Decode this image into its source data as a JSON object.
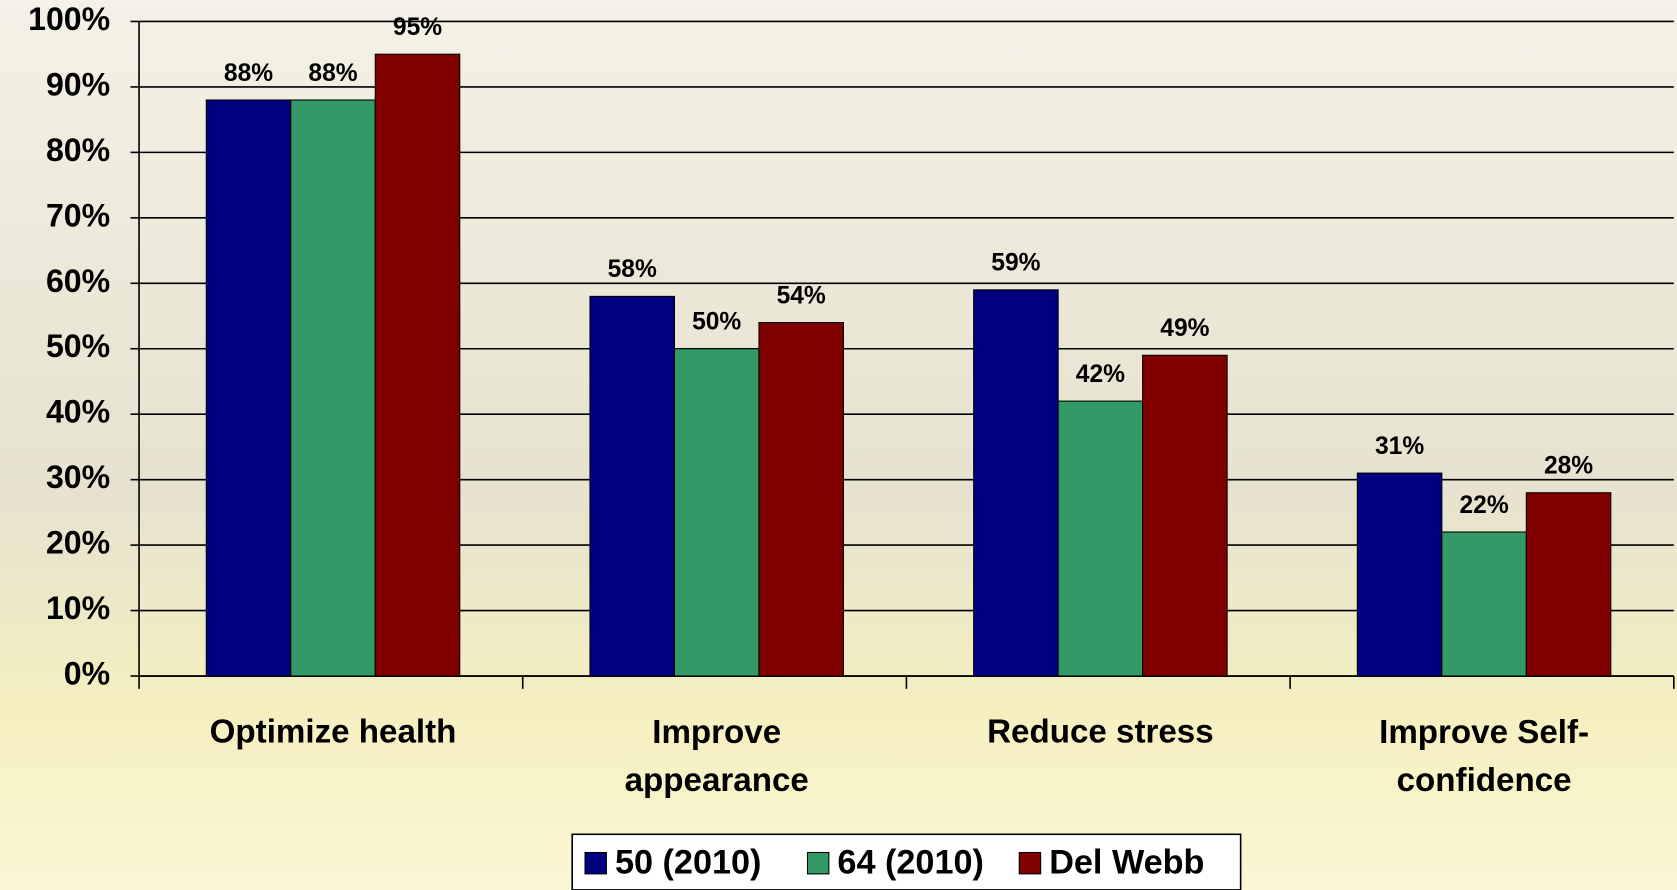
{
  "chart_data": {
    "type": "bar",
    "categories": [
      "Optimize health",
      "Improve\nappearance",
      "Reduce stress",
      "Improve Self-\nconfidence"
    ],
    "series": [
      {
        "name": "50 (2010)",
        "color": "#000080",
        "values": [
          88,
          58,
          59,
          31
        ],
        "value_labels": [
          "88%",
          "58%",
          "59%",
          "31%"
        ]
      },
      {
        "name": "64 (2010)",
        "color": "#339966",
        "values": [
          88,
          50,
          42,
          22
        ],
        "value_labels": [
          "88%",
          "50%",
          "42%",
          "22%"
        ]
      },
      {
        "name": "Del Webb",
        "color": "#800000",
        "values": [
          95,
          54,
          49,
          28
        ],
        "value_labels": [
          "95%",
          "54%",
          "49%",
          "28%"
        ]
      }
    ],
    "ylim": [
      0,
      100
    ],
    "yticks": [
      {
        "value": 0,
        "label": "0%"
      },
      {
        "value": 10,
        "label": "10%"
      },
      {
        "value": 20,
        "label": "20%"
      },
      {
        "value": 30,
        "label": "30%"
      },
      {
        "value": 40,
        "label": "40%"
      },
      {
        "value": 50,
        "label": "50%"
      },
      {
        "value": 60,
        "label": "60%"
      },
      {
        "value": 70,
        "label": "70%"
      },
      {
        "value": 80,
        "label": "80%"
      },
      {
        "value": 90,
        "label": "90%"
      },
      {
        "value": 100,
        "label": "100%"
      }
    ],
    "grid": true,
    "legend": "bottom"
  }
}
